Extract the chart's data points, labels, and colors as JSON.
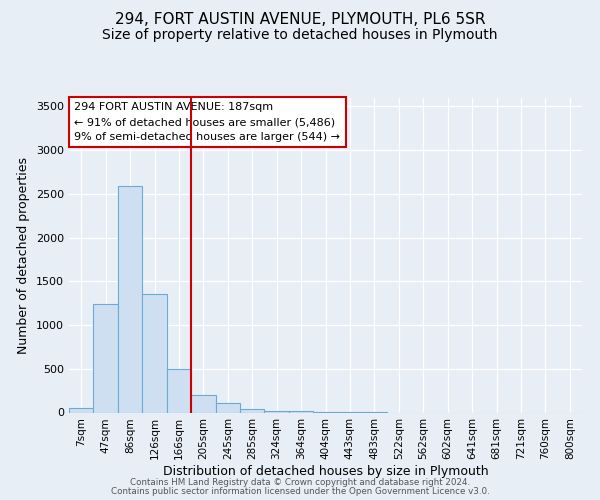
{
  "title": "294, FORT AUSTIN AVENUE, PLYMOUTH, PL6 5SR",
  "subtitle": "Size of property relative to detached houses in Plymouth",
  "xlabel": "Distribution of detached houses by size in Plymouth",
  "ylabel": "Number of detached properties",
  "bar_color": "#cfdff2",
  "bar_edge_color": "#6aaad4",
  "annotation_box_edge": "#cc0000",
  "vline_color": "#cc0000",
  "vline_x": 4.5,
  "property_line": "294 FORT AUSTIN AVENUE: 187sqm",
  "annotation_line2": "← 91% of detached houses are smaller (5,486)",
  "annotation_line3": "9% of semi-detached houses are larger (544) →",
  "footer1": "Contains HM Land Registry data © Crown copyright and database right 2024.",
  "footer2": "Contains public sector information licensed under the Open Government Licence v3.0.",
  "categories": [
    "7sqm",
    "47sqm",
    "86sqm",
    "126sqm",
    "166sqm",
    "205sqm",
    "245sqm",
    "285sqm",
    "324sqm",
    "364sqm",
    "404sqm",
    "443sqm",
    "483sqm",
    "522sqm",
    "562sqm",
    "602sqm",
    "641sqm",
    "681sqm",
    "721sqm",
    "760sqm",
    "800sqm"
  ],
  "values": [
    50,
    1235,
    2590,
    1350,
    500,
    200,
    110,
    40,
    20,
    15,
    5,
    2,
    1,
    0,
    0,
    0,
    0,
    0,
    0,
    0,
    0
  ],
  "ylim": [
    0,
    3600
  ],
  "yticks": [
    0,
    500,
    1000,
    1500,
    2000,
    2500,
    3000,
    3500
  ],
  "background_color": "#e8eef5",
  "plot_bg_color": "#e8eef5",
  "title_fontsize": 11,
  "subtitle_fontsize": 10,
  "xlabel_fontsize": 9,
  "ylabel_fontsize": 9,
  "tick_fontsize": 8,
  "xtick_fontsize": 7.5
}
